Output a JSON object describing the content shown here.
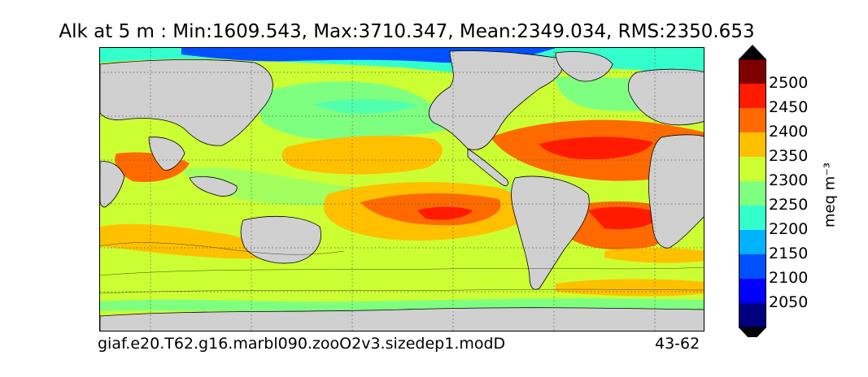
{
  "title": "Alk at 5 m : Min:1609.543, Max:3710.347, Mean:2349.034, RMS:2350.653",
  "caption_left": "giaf.e20.T62.g16.marbl090.zooO2v3.sizedep1.modD",
  "caption_right": "43-62",
  "colorbar": {
    "units": "meq m⁻³",
    "ticks": [
      "2500",
      "2450",
      "2400",
      "2350",
      "2300",
      "2250",
      "2200",
      "2150",
      "2100",
      "2050"
    ],
    "colors": [
      "#7f0000",
      "#ff1a00",
      "#ff6a00",
      "#ffc000",
      "#ccff33",
      "#7fff7f",
      "#33ffcc",
      "#00b2ff",
      "#0050ff",
      "#0000ff",
      "#00007f"
    ],
    "extend": "both"
  },
  "map": {
    "field": "Alk",
    "depth": "5 m",
    "land_color": "#d0d0d0",
    "region_colors": {
      "arctic": "#0050ff",
      "arctic_edge": "#33ffcc",
      "north_pacific": "#7fff7f",
      "subtropical": "#ccff33",
      "gyre": "#ffc000",
      "high": "#ff6a00",
      "peak": "#ff1a00",
      "southern": "#ccff33"
    }
  }
}
